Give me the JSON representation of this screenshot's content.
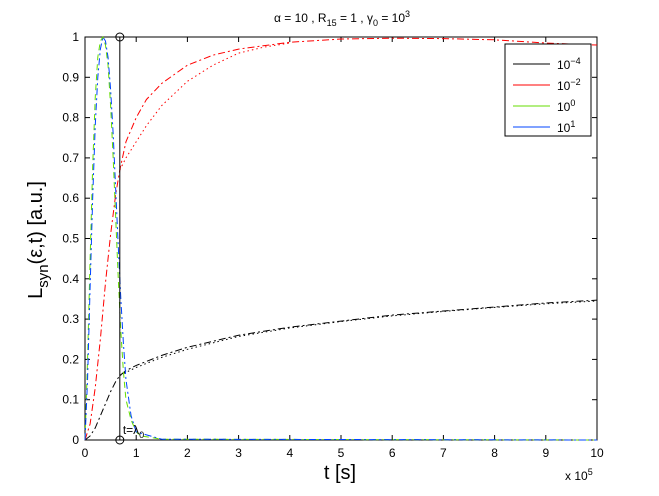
{
  "chart_data": {
    "type": "line",
    "title": {
      "alpha": "α = 10 , R",
      "r_sub": "15",
      "mid": " = 1 , γ",
      "g_sub": "0",
      "end": " = 10",
      "end_sup": "3"
    },
    "xlabel": "t [s]",
    "ylabel": {
      "main": "L",
      "sub": "syn",
      "rest": "(ε,t) [a.u.]"
    },
    "x_exponent_label": {
      "base": "x 10",
      "sup": "5"
    },
    "xlim": [
      0,
      10
    ],
    "ylim": [
      0,
      1
    ],
    "x_ticks": [
      "0",
      "1",
      "2",
      "3",
      "4",
      "5",
      "6",
      "7",
      "8",
      "9",
      "10"
    ],
    "y_ticks": [
      "0",
      "0.1",
      "0.2",
      "0.3",
      "0.4",
      "0.5",
      "0.6",
      "0.7",
      "0.8",
      "0.9",
      "1"
    ],
    "annotation": {
      "text": "t=λ",
      "sub": "0",
      "x": 0.68
    },
    "legend": {
      "placement": "top-right",
      "entries": [
        {
          "base": "10",
          "sup": "−4"
        },
        {
          "base": "10",
          "sup": "−2"
        },
        {
          "base": "10",
          "sup": "0"
        },
        {
          "base": "10",
          "sup": "1"
        }
      ]
    },
    "series": [
      {
        "name": "10^-4",
        "color": "#000000",
        "style": "dashdot",
        "x": [
          0,
          0.1,
          0.2,
          0.3,
          0.4,
          0.5,
          0.6,
          0.68,
          0.8,
          1.0,
          1.5,
          2,
          3,
          4,
          5,
          6,
          7,
          8,
          9,
          10
        ],
        "y": [
          0,
          0.01,
          0.03,
          0.06,
          0.09,
          0.12,
          0.145,
          0.16,
          0.172,
          0.185,
          0.21,
          0.23,
          0.26,
          0.28,
          0.295,
          0.31,
          0.32,
          0.33,
          0.34,
          0.347
        ]
      },
      {
        "name": "10^-4 (dotted)",
        "color": "#000000",
        "style": "dotted",
        "x": [
          0.68,
          0.8,
          1.0,
          1.5,
          2,
          3,
          4,
          5,
          6,
          7,
          8,
          9,
          10
        ],
        "y": [
          0.16,
          0.168,
          0.18,
          0.205,
          0.225,
          0.257,
          0.278,
          0.294,
          0.308,
          0.319,
          0.329,
          0.338,
          0.345
        ]
      },
      {
        "name": "10^-2",
        "color": "#ff0000",
        "style": "dashdot",
        "x": [
          0,
          0.1,
          0.2,
          0.3,
          0.4,
          0.5,
          0.6,
          0.68,
          0.8,
          1.0,
          1.2,
          1.5,
          2,
          2.5,
          3,
          4,
          5,
          6,
          7,
          8,
          9,
          10
        ],
        "y": [
          0,
          0.04,
          0.13,
          0.25,
          0.39,
          0.51,
          0.61,
          0.67,
          0.74,
          0.8,
          0.845,
          0.885,
          0.93,
          0.955,
          0.97,
          0.987,
          0.995,
          0.997,
          0.996,
          0.993,
          0.985,
          0.98
        ]
      },
      {
        "name": "10^-2 (dotted)",
        "color": "#ff0000",
        "style": "dotted",
        "x": [
          0.68,
          0.8,
          1.0,
          1.2,
          1.5,
          2,
          2.5,
          3,
          3.5,
          4
        ],
        "y": [
          0.67,
          0.7,
          0.74,
          0.78,
          0.83,
          0.89,
          0.93,
          0.96,
          0.975,
          0.985
        ]
      },
      {
        "name": "10^0",
        "color": "#66dd00",
        "style": "dashed",
        "x": [
          0,
          0.05,
          0.1,
          0.15,
          0.2,
          0.25,
          0.3,
          0.35,
          0.4,
          0.45,
          0.5,
          0.55,
          0.6,
          0.65,
          0.7,
          0.75,
          0.8,
          0.9,
          1.0,
          1.1,
          1.5,
          10
        ],
        "y": [
          0,
          0.2,
          0.45,
          0.68,
          0.85,
          0.95,
          0.99,
          1.0,
          0.98,
          0.93,
          0.83,
          0.7,
          0.55,
          0.4,
          0.27,
          0.17,
          0.1,
          0.05,
          0.02,
          0.01,
          0.002,
          0
        ]
      },
      {
        "name": "10^1",
        "color": "#0044ff",
        "style": "dashdot",
        "x": [
          0,
          0.05,
          0.1,
          0.15,
          0.2,
          0.25,
          0.3,
          0.35,
          0.4,
          0.45,
          0.5,
          0.55,
          0.6,
          0.65,
          0.7,
          0.75,
          0.8,
          0.9,
          1.0,
          1.5,
          10
        ],
        "y": [
          0,
          0.15,
          0.38,
          0.6,
          0.78,
          0.9,
          0.97,
          1.0,
          0.99,
          0.95,
          0.87,
          0.76,
          0.62,
          0.48,
          0.35,
          0.24,
          0.15,
          0.06,
          0.02,
          0.002,
          0
        ]
      }
    ],
    "grid": false
  }
}
